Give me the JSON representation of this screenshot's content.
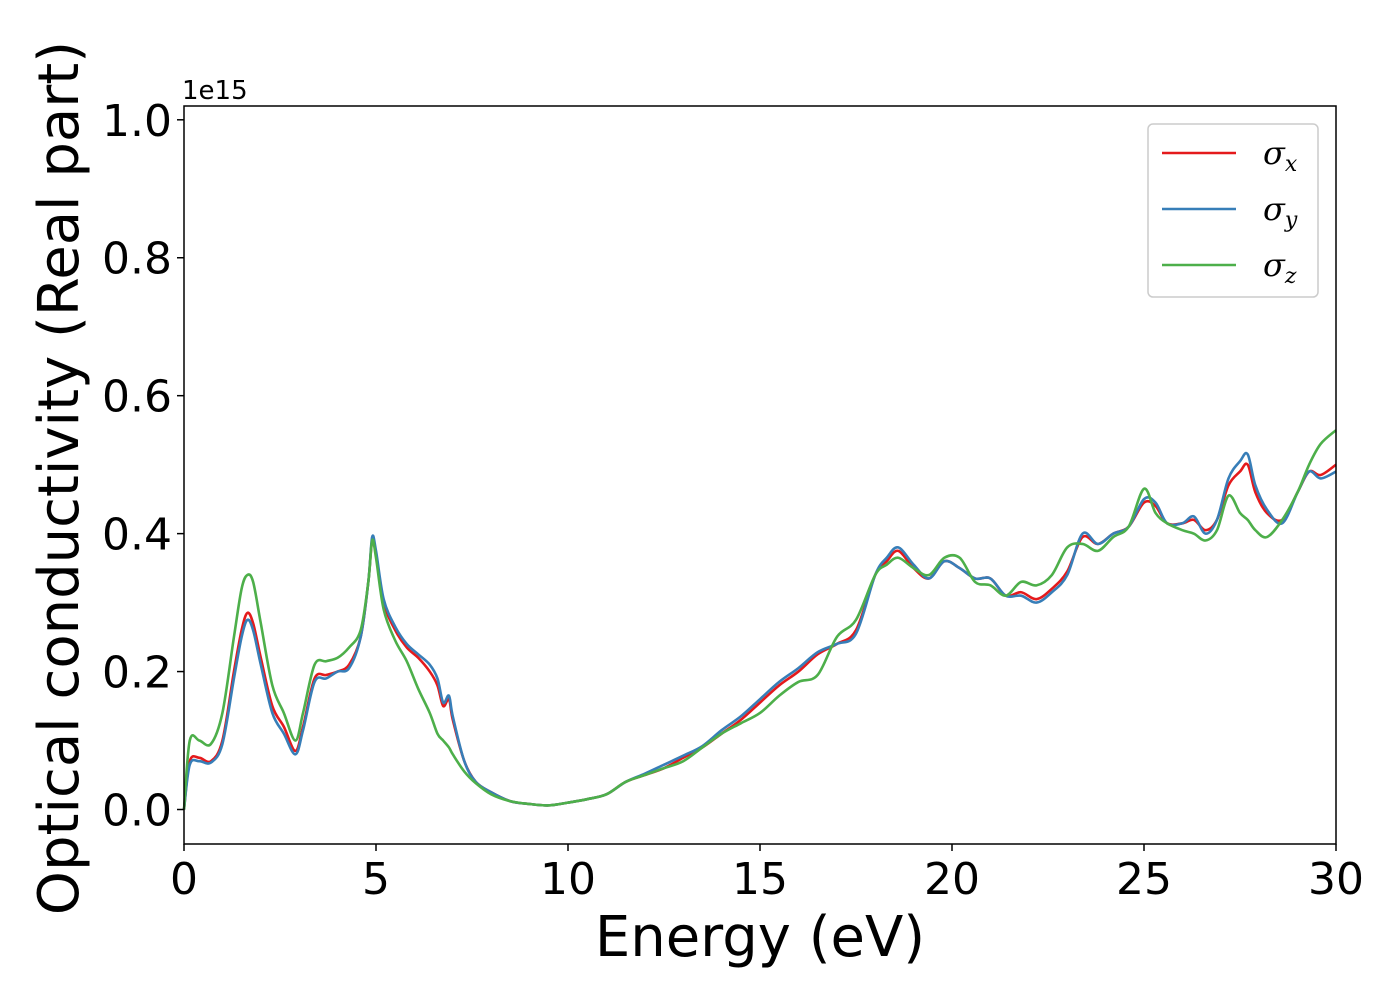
{
  "chart_data": {
    "type": "line",
    "xlabel": "Energy (eV)",
    "ylabel": "Optical conductivity (Real part)",
    "y_offset_label": "1e15",
    "xlim": [
      0,
      30
    ],
    "ylim": [
      -0.05,
      1.02
    ],
    "x_ticks": [
      0,
      5,
      10,
      15,
      20,
      25,
      30
    ],
    "x_tick_labels": [
      "0",
      "5",
      "10",
      "15",
      "20",
      "25",
      "30"
    ],
    "y_ticks": [
      0.0,
      0.2,
      0.4,
      0.6,
      0.8,
      1.0
    ],
    "y_tick_labels": [
      "0.0",
      "0.2",
      "0.4",
      "0.6",
      "0.8",
      "1.0"
    ],
    "grid": false,
    "legend_position": "top-right",
    "series": [
      {
        "name": "σx",
        "legend_symbol": "σ",
        "legend_sub": "x",
        "color": "#e41a1c",
        "points": [
          [
            0,
            0.0
          ],
          [
            0.15,
            0.07
          ],
          [
            0.4,
            0.075
          ],
          [
            0.7,
            0.07
          ],
          [
            1.0,
            0.1
          ],
          [
            1.3,
            0.2
          ],
          [
            1.5,
            0.26
          ],
          [
            1.65,
            0.285
          ],
          [
            1.8,
            0.27
          ],
          [
            2.0,
            0.22
          ],
          [
            2.3,
            0.15
          ],
          [
            2.6,
            0.12
          ],
          [
            2.9,
            0.085
          ],
          [
            3.1,
            0.12
          ],
          [
            3.4,
            0.19
          ],
          [
            3.7,
            0.195
          ],
          [
            4.0,
            0.2
          ],
          [
            4.3,
            0.21
          ],
          [
            4.6,
            0.25
          ],
          [
            4.8,
            0.33
          ],
          [
            4.9,
            0.39
          ],
          [
            5.0,
            0.37
          ],
          [
            5.2,
            0.3
          ],
          [
            5.5,
            0.26
          ],
          [
            5.8,
            0.235
          ],
          [
            6.1,
            0.22
          ],
          [
            6.4,
            0.2
          ],
          [
            6.6,
            0.18
          ],
          [
            6.75,
            0.15
          ],
          [
            6.9,
            0.16
          ],
          [
            7.0,
            0.13
          ],
          [
            7.3,
            0.07
          ],
          [
            7.6,
            0.04
          ],
          [
            8.0,
            0.025
          ],
          [
            8.5,
            0.012
          ],
          [
            9.0,
            0.008
          ],
          [
            9.5,
            0.006
          ],
          [
            10.0,
            0.01
          ],
          [
            10.5,
            0.015
          ],
          [
            11.0,
            0.022
          ],
          [
            11.5,
            0.04
          ],
          [
            12.0,
            0.05
          ],
          [
            12.5,
            0.06
          ],
          [
            13.0,
            0.075
          ],
          [
            13.5,
            0.09
          ],
          [
            14.0,
            0.11
          ],
          [
            14.5,
            0.13
          ],
          [
            15.0,
            0.155
          ],
          [
            15.5,
            0.18
          ],
          [
            16.0,
            0.2
          ],
          [
            16.5,
            0.225
          ],
          [
            17.0,
            0.24
          ],
          [
            17.5,
            0.26
          ],
          [
            18.0,
            0.34
          ],
          [
            18.3,
            0.36
          ],
          [
            18.6,
            0.375
          ],
          [
            19.0,
            0.35
          ],
          [
            19.4,
            0.335
          ],
          [
            19.8,
            0.36
          ],
          [
            20.2,
            0.35
          ],
          [
            20.6,
            0.335
          ],
          [
            21.0,
            0.335
          ],
          [
            21.4,
            0.31
          ],
          [
            21.8,
            0.315
          ],
          [
            22.2,
            0.305
          ],
          [
            22.6,
            0.32
          ],
          [
            23.0,
            0.345
          ],
          [
            23.4,
            0.395
          ],
          [
            23.8,
            0.385
          ],
          [
            24.2,
            0.4
          ],
          [
            24.6,
            0.41
          ],
          [
            25.0,
            0.445
          ],
          [
            25.3,
            0.44
          ],
          [
            25.6,
            0.415
          ],
          [
            26.0,
            0.415
          ],
          [
            26.3,
            0.42
          ],
          [
            26.6,
            0.405
          ],
          [
            26.9,
            0.42
          ],
          [
            27.2,
            0.47
          ],
          [
            27.5,
            0.49
          ],
          [
            27.7,
            0.5
          ],
          [
            27.9,
            0.46
          ],
          [
            28.2,
            0.43
          ],
          [
            28.6,
            0.42
          ],
          [
            29.0,
            0.46
          ],
          [
            29.3,
            0.49
          ],
          [
            29.6,
            0.485
          ],
          [
            30.0,
            0.5
          ]
        ]
      },
      {
        "name": "σy",
        "legend_symbol": "σ",
        "legend_sub": "y",
        "color": "#377eb8",
        "points": [
          [
            0,
            0.0
          ],
          [
            0.15,
            0.065
          ],
          [
            0.4,
            0.07
          ],
          [
            0.7,
            0.068
          ],
          [
            1.0,
            0.095
          ],
          [
            1.3,
            0.19
          ],
          [
            1.5,
            0.25
          ],
          [
            1.65,
            0.275
          ],
          [
            1.8,
            0.26
          ],
          [
            2.0,
            0.21
          ],
          [
            2.3,
            0.14
          ],
          [
            2.6,
            0.11
          ],
          [
            2.9,
            0.08
          ],
          [
            3.1,
            0.115
          ],
          [
            3.4,
            0.185
          ],
          [
            3.7,
            0.19
          ],
          [
            4.0,
            0.2
          ],
          [
            4.3,
            0.205
          ],
          [
            4.6,
            0.25
          ],
          [
            4.8,
            0.33
          ],
          [
            4.9,
            0.395
          ],
          [
            5.0,
            0.375
          ],
          [
            5.2,
            0.305
          ],
          [
            5.5,
            0.265
          ],
          [
            5.8,
            0.24
          ],
          [
            6.1,
            0.225
          ],
          [
            6.4,
            0.21
          ],
          [
            6.6,
            0.19
          ],
          [
            6.75,
            0.155
          ],
          [
            6.9,
            0.165
          ],
          [
            7.0,
            0.135
          ],
          [
            7.3,
            0.07
          ],
          [
            7.6,
            0.04
          ],
          [
            8.0,
            0.025
          ],
          [
            8.5,
            0.012
          ],
          [
            9.0,
            0.008
          ],
          [
            9.5,
            0.006
          ],
          [
            10.0,
            0.01
          ],
          [
            10.5,
            0.015
          ],
          [
            11.0,
            0.022
          ],
          [
            11.5,
            0.04
          ],
          [
            12.0,
            0.052
          ],
          [
            12.5,
            0.065
          ],
          [
            13.0,
            0.078
          ],
          [
            13.5,
            0.092
          ],
          [
            14.0,
            0.115
          ],
          [
            14.5,
            0.135
          ],
          [
            15.0,
            0.16
          ],
          [
            15.5,
            0.185
          ],
          [
            16.0,
            0.205
          ],
          [
            16.5,
            0.228
          ],
          [
            17.0,
            0.24
          ],
          [
            17.5,
            0.255
          ],
          [
            18.0,
            0.34
          ],
          [
            18.3,
            0.365
          ],
          [
            18.6,
            0.38
          ],
          [
            19.0,
            0.355
          ],
          [
            19.4,
            0.335
          ],
          [
            19.8,
            0.36
          ],
          [
            20.2,
            0.35
          ],
          [
            20.6,
            0.335
          ],
          [
            21.0,
            0.335
          ],
          [
            21.4,
            0.31
          ],
          [
            21.8,
            0.31
          ],
          [
            22.2,
            0.3
          ],
          [
            22.6,
            0.315
          ],
          [
            23.0,
            0.34
          ],
          [
            23.4,
            0.4
          ],
          [
            23.8,
            0.385
          ],
          [
            24.2,
            0.4
          ],
          [
            24.6,
            0.41
          ],
          [
            25.0,
            0.45
          ],
          [
            25.3,
            0.445
          ],
          [
            25.6,
            0.415
          ],
          [
            26.0,
            0.415
          ],
          [
            26.3,
            0.425
          ],
          [
            26.6,
            0.4
          ],
          [
            26.9,
            0.42
          ],
          [
            27.2,
            0.48
          ],
          [
            27.5,
            0.505
          ],
          [
            27.7,
            0.515
          ],
          [
            27.9,
            0.47
          ],
          [
            28.2,
            0.435
          ],
          [
            28.6,
            0.415
          ],
          [
            29.0,
            0.46
          ],
          [
            29.3,
            0.49
          ],
          [
            29.6,
            0.48
          ],
          [
            30.0,
            0.49
          ]
        ]
      },
      {
        "name": "σz",
        "legend_symbol": "σ",
        "legend_sub": "z",
        "color": "#4daf4a",
        "points": [
          [
            0,
            0.0
          ],
          [
            0.15,
            0.1
          ],
          [
            0.4,
            0.1
          ],
          [
            0.7,
            0.095
          ],
          [
            1.0,
            0.14
          ],
          [
            1.3,
            0.25
          ],
          [
            1.5,
            0.32
          ],
          [
            1.65,
            0.34
          ],
          [
            1.8,
            0.33
          ],
          [
            2.0,
            0.27
          ],
          [
            2.3,
            0.18
          ],
          [
            2.6,
            0.14
          ],
          [
            2.9,
            0.1
          ],
          [
            3.1,
            0.14
          ],
          [
            3.4,
            0.21
          ],
          [
            3.7,
            0.215
          ],
          [
            4.0,
            0.22
          ],
          [
            4.3,
            0.235
          ],
          [
            4.6,
            0.26
          ],
          [
            4.8,
            0.33
          ],
          [
            4.9,
            0.39
          ],
          [
            5.0,
            0.365
          ],
          [
            5.2,
            0.29
          ],
          [
            5.5,
            0.245
          ],
          [
            5.8,
            0.215
          ],
          [
            6.1,
            0.175
          ],
          [
            6.4,
            0.14
          ],
          [
            6.6,
            0.11
          ],
          [
            6.75,
            0.1
          ],
          [
            6.9,
            0.09
          ],
          [
            7.0,
            0.08
          ],
          [
            7.3,
            0.055
          ],
          [
            7.6,
            0.038
          ],
          [
            8.0,
            0.022
          ],
          [
            8.5,
            0.012
          ],
          [
            9.0,
            0.008
          ],
          [
            9.5,
            0.006
          ],
          [
            10.0,
            0.01
          ],
          [
            10.5,
            0.015
          ],
          [
            11.0,
            0.022
          ],
          [
            11.5,
            0.04
          ],
          [
            12.0,
            0.05
          ],
          [
            12.5,
            0.06
          ],
          [
            13.0,
            0.07
          ],
          [
            13.5,
            0.09
          ],
          [
            14.0,
            0.11
          ],
          [
            14.5,
            0.125
          ],
          [
            15.0,
            0.14
          ],
          [
            15.5,
            0.165
          ],
          [
            16.0,
            0.185
          ],
          [
            16.5,
            0.195
          ],
          [
            17.0,
            0.25
          ],
          [
            17.5,
            0.275
          ],
          [
            18.0,
            0.34
          ],
          [
            18.3,
            0.355
          ],
          [
            18.6,
            0.365
          ],
          [
            19.0,
            0.35
          ],
          [
            19.4,
            0.34
          ],
          [
            19.8,
            0.365
          ],
          [
            20.2,
            0.365
          ],
          [
            20.6,
            0.33
          ],
          [
            21.0,
            0.325
          ],
          [
            21.4,
            0.31
          ],
          [
            21.8,
            0.33
          ],
          [
            22.2,
            0.325
          ],
          [
            22.6,
            0.34
          ],
          [
            23.0,
            0.38
          ],
          [
            23.4,
            0.385
          ],
          [
            23.8,
            0.375
          ],
          [
            24.2,
            0.395
          ],
          [
            24.6,
            0.41
          ],
          [
            25.0,
            0.465
          ],
          [
            25.3,
            0.43
          ],
          [
            25.6,
            0.415
          ],
          [
            26.0,
            0.405
          ],
          [
            26.3,
            0.4
          ],
          [
            26.6,
            0.39
          ],
          [
            26.9,
            0.405
          ],
          [
            27.2,
            0.455
          ],
          [
            27.5,
            0.43
          ],
          [
            27.7,
            0.42
          ],
          [
            27.9,
            0.405
          ],
          [
            28.2,
            0.395
          ],
          [
            28.6,
            0.42
          ],
          [
            29.0,
            0.46
          ],
          [
            29.3,
            0.5
          ],
          [
            29.6,
            0.53
          ],
          [
            30.0,
            0.55
          ]
        ]
      }
    ]
  }
}
